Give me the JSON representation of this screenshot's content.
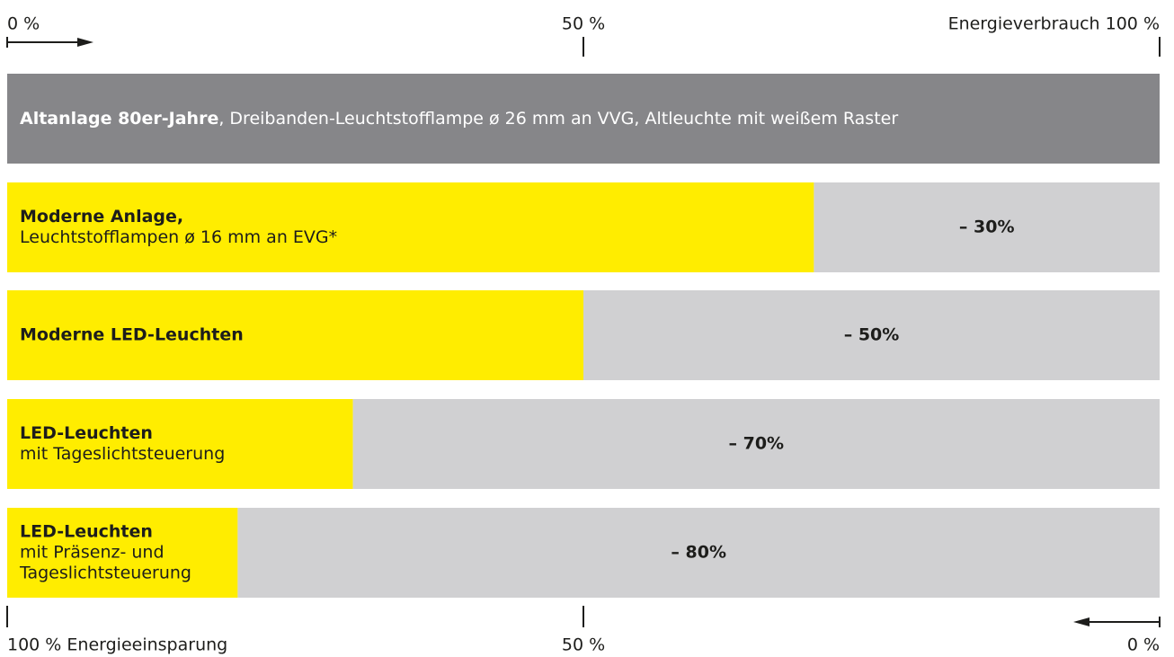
{
  "chart_data": {
    "type": "bar",
    "orientation": "horizontal",
    "categories": [
      {
        "title": "Altanlage 80er-Jahre",
        "detail": [
          ", Dreibanden-Leuchtstofflampe ø 26 mm an VVG, Altleuchte mit weißem Raster"
        ]
      },
      {
        "title": "Moderne Anlage,",
        "detail": [
          "Leuchtstofflampen ø 16 mm an EVG*"
        ]
      },
      {
        "title": "Moderne LED-Leuchten",
        "detail": []
      },
      {
        "title": "LED-Leuchten",
        "detail": [
          "mit Tageslichtsteuerung"
        ]
      },
      {
        "title": "LED-Leuchten",
        "detail": [
          "mit Präsenz- und",
          "Tageslichtsteuerung"
        ]
      }
    ],
    "values": [
      100,
      70,
      50,
      30,
      20
    ],
    "colors": [
      "#868689",
      "#ffed00",
      "#ffed00",
      "#ffed00",
      "#ffed00"
    ],
    "savings": [
      null,
      30,
      50,
      70,
      80
    ],
    "savings_labels": [
      null,
      "– 30%",
      "– 50%",
      "– 70%",
      "– 80%"
    ],
    "savings_color": "#d0d0d2",
    "xlim": [
      0,
      100
    ],
    "xticks": [
      {
        "value": 0,
        "label": "0 %"
      },
      {
        "value": 50,
        "label": "50 %"
      },
      {
        "value": 100,
        "label": "Energieverbrauch 100 %"
      }
    ],
    "x2lim": [
      100,
      0
    ],
    "x2ticks": [
      {
        "value": 100,
        "label": "100 % Energieeinsparung"
      },
      {
        "value": 50,
        "label": "50 %"
      },
      {
        "value": 0,
        "label": "0 %"
      }
    ]
  }
}
